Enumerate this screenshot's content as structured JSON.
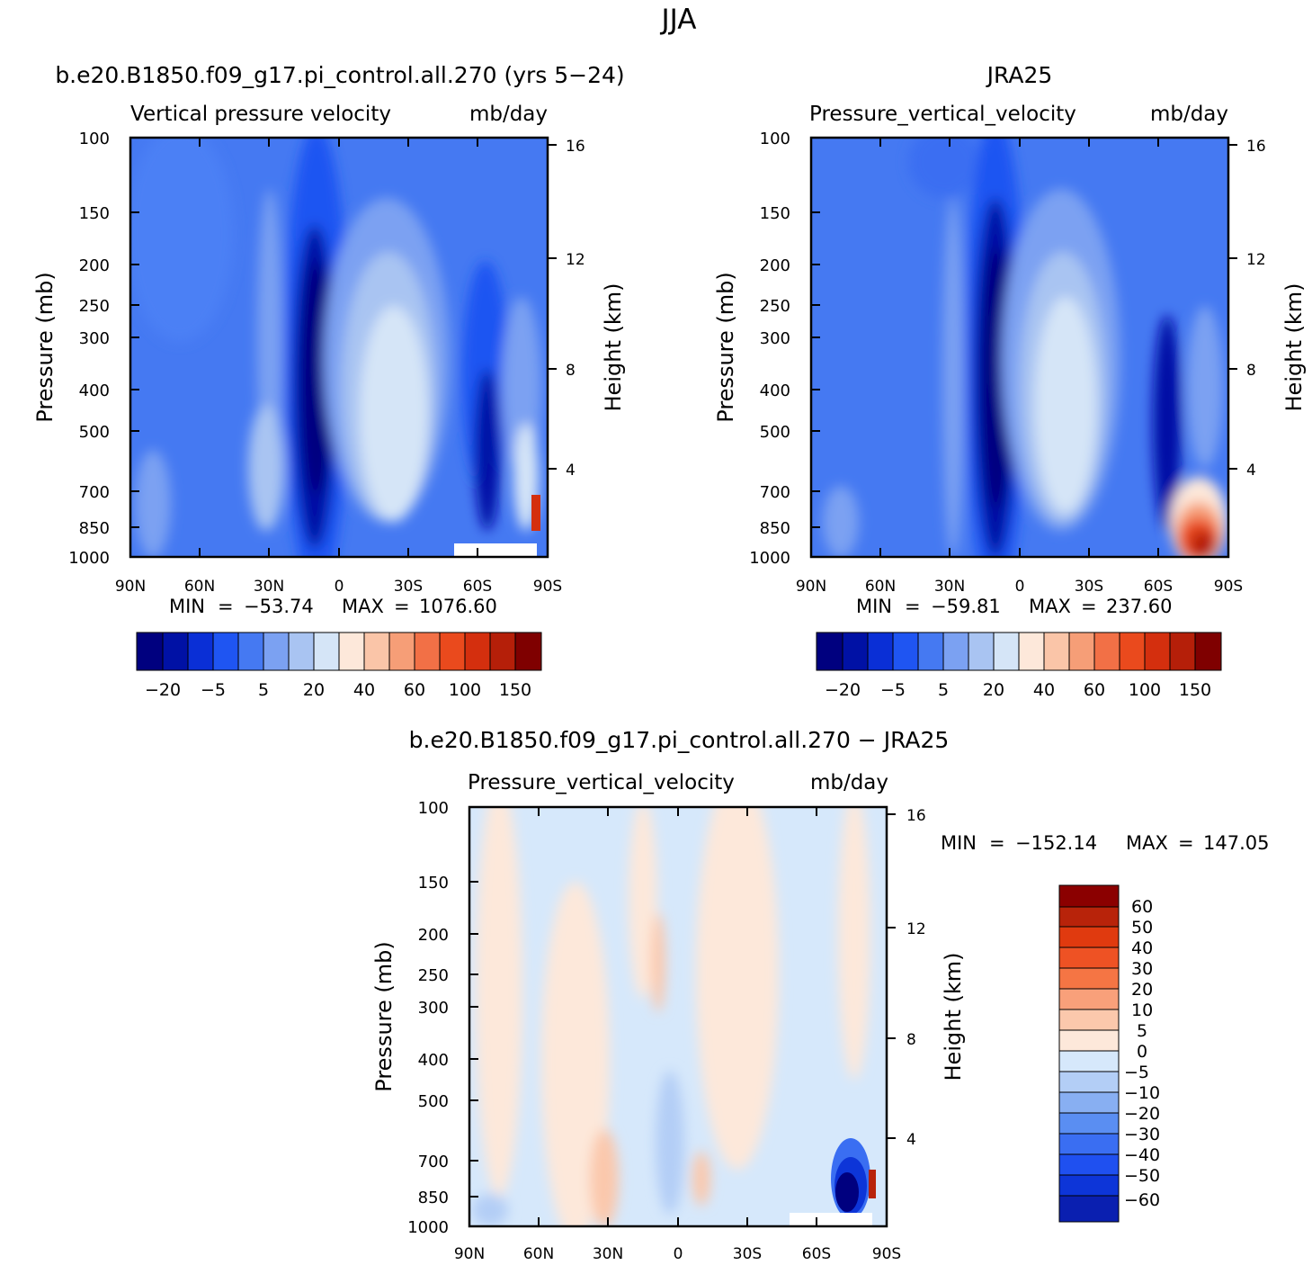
{
  "figure": {
    "title": "JJA",
    "difference_title": "b.e20.B1850.f09_g17.pi_control.all.270 − JRA25"
  },
  "panels": [
    {
      "case_title": "b.e20.B1850.f09_g17.pi_control.all.270 (yrs 5−24)",
      "subtitle_left": "Vertical pressure velocity",
      "subtitle_right": "mb/day",
      "ylabel": "Pressure (mb)",
      "ylabel_right": "Height (km)",
      "y_ticks": [
        "100",
        "150",
        "200",
        "250",
        "300",
        "400",
        "500",
        "700",
        "850",
        "1000"
      ],
      "height_ticks": [
        "16",
        "12",
        "8",
        "4"
      ],
      "x_ticks": [
        "90N",
        "60N",
        "30N",
        "0",
        "30S",
        "60S",
        "90S"
      ],
      "min_label": "MIN",
      "min_value": "−53.74",
      "max_label": "MAX",
      "max_value": "1076.60",
      "colorbar_labels": [
        "−20",
        "−5",
        "5",
        "20",
        "40",
        "60",
        "100",
        "150"
      ]
    },
    {
      "case_title": "JRA25",
      "subtitle_left": "Pressure_vertical_velocity",
      "subtitle_right": "mb/day",
      "ylabel": "Pressure (mb)",
      "ylabel_right": "Height (km)",
      "y_ticks": [
        "100",
        "150",
        "200",
        "250",
        "300",
        "400",
        "500",
        "700",
        "850",
        "1000"
      ],
      "height_ticks": [
        "16",
        "12",
        "8",
        "4"
      ],
      "x_ticks": [
        "90N",
        "60N",
        "30N",
        "0",
        "30S",
        "60S",
        "90S"
      ],
      "min_label": "MIN",
      "min_value": "−59.81",
      "max_label": "MAX",
      "max_value": "237.60",
      "colorbar_labels": [
        "−20",
        "−5",
        "5",
        "20",
        "40",
        "60",
        "100",
        "150"
      ]
    },
    {
      "subtitle_left": "Pressure_vertical_velocity",
      "subtitle_right": "mb/day",
      "ylabel": "Pressure (mb)",
      "ylabel_right": "Height (km)",
      "y_ticks": [
        "100",
        "150",
        "200",
        "250",
        "300",
        "400",
        "500",
        "700",
        "850",
        "1000"
      ],
      "height_ticks": [
        "16",
        "12",
        "8",
        "4"
      ],
      "x_ticks": [
        "90N",
        "60N",
        "30N",
        "0",
        "30S",
        "60S",
        "90S"
      ],
      "min_label": "MIN",
      "min_value": "−152.14",
      "max_label": "MAX",
      "max_value": "147.05",
      "colorbar_labels": [
        "60",
        "50",
        "40",
        "30",
        "20",
        "10",
        "5",
        "0",
        "−5",
        "−10",
        "−20",
        "−30",
        "−40",
        "−50",
        "−60"
      ]
    }
  ],
  "colors": {
    "abs_scale": [
      "#00007f",
      "#0011a5",
      "#0a2fd6",
      "#1f55f2",
      "#4579f2",
      "#7ba1f2",
      "#a9c4f2",
      "#d5e5f7",
      "#fde8da",
      "#fac5a8",
      "#f69e77",
      "#f27046",
      "#ea4a1d",
      "#d42f0e",
      "#b51f09",
      "#7f0000"
    ],
    "diff_scale": [
      "#00007f",
      "#0a1fb0",
      "#0d35d8",
      "#1f50f0",
      "#3a6ef2",
      "#5a8ef2",
      "#88aff2",
      "#b3cef6",
      "#d6e8fb",
      "#fde8da",
      "#fbc8ac",
      "#f9a07a",
      "#f57544",
      "#ee5224",
      "#e03a0f",
      "#b8230a",
      "#8b0000"
    ]
  },
  "chart_data": [
    {
      "type": "heatmap",
      "title": "b.e20.B1850.f09_g17.pi_control.all.270 (yrs 5−24)",
      "variable": "Vertical pressure velocity",
      "units": "mb/day",
      "x": [
        "90N",
        "60N",
        "30N",
        "0",
        "30S",
        "60S",
        "90S"
      ],
      "y_levels_mb": [
        100,
        150,
        200,
        250,
        300,
        400,
        500,
        700,
        850,
        1000
      ],
      "colorbar_levels": [
        -20,
        -5,
        5,
        20,
        40,
        60,
        100,
        150
      ],
      "min": -53.74,
      "max": 1076.6,
      "features": [
        {
          "latitude": "≈10N",
          "pressure_mb": [
            200,
            1000
          ],
          "sign": "negative (ascent)",
          "min_class": "< −20"
        },
        {
          "latitude": "≈20S",
          "pressure_mb": [
            200,
            900
          ],
          "sign": "positive (descent)",
          "max_class": "20 to 40"
        },
        {
          "latitude": "≈65S",
          "pressure_mb": [
            300,
            900
          ],
          "sign": "negative",
          "min_class": "< −20"
        },
        {
          "latitude": "≈85S",
          "pressure_mb": [
            700,
            900
          ],
          "sign": "positive",
          "max_class": "> 150"
        }
      ]
    },
    {
      "type": "heatmap",
      "title": "JRA25",
      "variable": "Pressure_vertical_velocity",
      "units": "mb/day",
      "x": [
        "90N",
        "60N",
        "30N",
        "0",
        "30S",
        "60S",
        "90S"
      ],
      "y_levels_mb": [
        100,
        150,
        200,
        250,
        300,
        400,
        500,
        700,
        850,
        1000
      ],
      "colorbar_levels": [
        -20,
        -5,
        5,
        20,
        40,
        60,
        100,
        150
      ],
      "min": -59.81,
      "max": 237.6,
      "features": [
        {
          "latitude": "≈8N",
          "pressure_mb": [
            170,
            1000
          ],
          "sign": "negative (ascent)",
          "min_class": "< −20"
        },
        {
          "latitude": "≈18S",
          "pressure_mb": [
            200,
            900
          ],
          "sign": "positive (descent)",
          "max_class": "20 to 40"
        },
        {
          "latitude": "≈75S",
          "pressure_mb": [
            650,
            1000
          ],
          "sign": "positive",
          "max_class": "> 150"
        }
      ]
    },
    {
      "type": "heatmap",
      "title": "b.e20.B1850.f09_g17.pi_control.all.270 − JRA25",
      "variable": "Pressure_vertical_velocity",
      "units": "mb/day",
      "x": [
        "90N",
        "60N",
        "30N",
        "0",
        "30S",
        "60S",
        "90S"
      ],
      "y_levels_mb": [
        100,
        150,
        200,
        250,
        300,
        400,
        500,
        700,
        850,
        1000
      ],
      "colorbar_levels": [
        -60,
        -50,
        -40,
        -30,
        -20,
        -10,
        -5,
        0,
        5,
        10,
        20,
        30,
        40,
        50,
        60
      ],
      "min": -152.14,
      "max": 147.05,
      "features": [
        {
          "latitude": "≈72S",
          "pressure_mb": [
            700,
            950
          ],
          "sign": "negative",
          "min_class": "< −60"
        },
        {
          "latitude": "≈88S",
          "pressure_mb": [
            800,
            950
          ],
          "sign": "positive",
          "max_class": "> 60"
        }
      ]
    }
  ]
}
